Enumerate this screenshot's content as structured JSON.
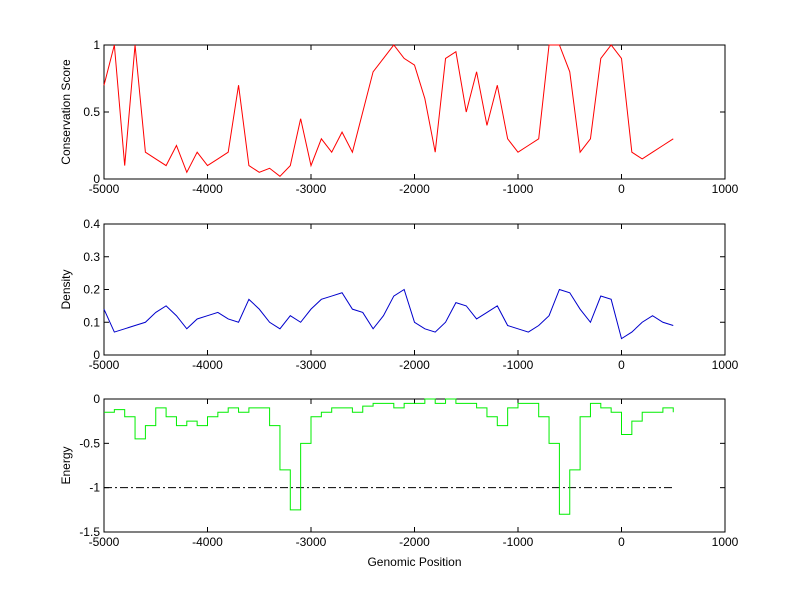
{
  "chart_data": [
    {
      "type": "line",
      "ylabel": "Conservation Score",
      "color": "#ff0000",
      "x": [
        -5000,
        -4900,
        -4800,
        -4700,
        -4600,
        -4500,
        -4400,
        -4300,
        -4200,
        -4100,
        -4000,
        -3900,
        -3800,
        -3700,
        -3600,
        -3500,
        -3400,
        -3300,
        -3200,
        -3100,
        -3000,
        -2900,
        -2800,
        -2700,
        -2600,
        -2500,
        -2400,
        -2300,
        -2200,
        -2100,
        -2000,
        -1900,
        -1800,
        -1700,
        -1600,
        -1500,
        -1400,
        -1300,
        -1200,
        -1100,
        -1000,
        -900,
        -800,
        -700,
        -600,
        -500,
        -400,
        -300,
        -200,
        -100,
        0,
        100,
        200,
        300,
        400,
        500
      ],
      "values": [
        0.7,
        1,
        0.1,
        1,
        0.2,
        0.15,
        0.1,
        0.25,
        0.05,
        0.2,
        0.1,
        0.15,
        0.2,
        0.7,
        0.1,
        0.05,
        0.08,
        0.02,
        0.1,
        0.45,
        0.1,
        0.3,
        0.2,
        0.35,
        0.2,
        0.5,
        0.8,
        0.9,
        1,
        0.9,
        0.85,
        0.6,
        0.2,
        0.9,
        0.95,
        0.5,
        0.8,
        0.4,
        0.7,
        0.3,
        0.2,
        0.25,
        0.3,
        1,
        1,
        0.8,
        0.2,
        0.3,
        0.9,
        1,
        0.9,
        0.2,
        0.15,
        0.2,
        0.25,
        0.3
      ],
      "xlim": [
        -5000,
        1000
      ],
      "xticks": [
        -5000,
        -4000,
        -3000,
        -2000,
        -1000,
        0,
        1000
      ],
      "ylim": [
        0,
        1
      ],
      "yticks": [
        0,
        0.5,
        1
      ]
    },
    {
      "type": "line",
      "ylabel": "Density",
      "color": "#0000cc",
      "x": [
        -5000,
        -4900,
        -4800,
        -4700,
        -4600,
        -4500,
        -4400,
        -4300,
        -4200,
        -4100,
        -4000,
        -3900,
        -3800,
        -3700,
        -3600,
        -3500,
        -3400,
        -3300,
        -3200,
        -3100,
        -3000,
        -2900,
        -2800,
        -2700,
        -2600,
        -2500,
        -2400,
        -2300,
        -2200,
        -2100,
        -2000,
        -1900,
        -1800,
        -1700,
        -1600,
        -1500,
        -1400,
        -1300,
        -1200,
        -1100,
        -1000,
        -900,
        -800,
        -700,
        -600,
        -500,
        -400,
        -300,
        -200,
        -100,
        0,
        100,
        200,
        300,
        400,
        500
      ],
      "values": [
        0.14,
        0.07,
        0.08,
        0.09,
        0.1,
        0.13,
        0.15,
        0.12,
        0.08,
        0.11,
        0.12,
        0.13,
        0.11,
        0.1,
        0.17,
        0.14,
        0.1,
        0.08,
        0.12,
        0.1,
        0.14,
        0.17,
        0.18,
        0.19,
        0.14,
        0.13,
        0.08,
        0.12,
        0.18,
        0.2,
        0.1,
        0.08,
        0.07,
        0.1,
        0.16,
        0.15,
        0.11,
        0.13,
        0.15,
        0.09,
        0.08,
        0.07,
        0.09,
        0.12,
        0.2,
        0.19,
        0.14,
        0.1,
        0.18,
        0.17,
        0.05,
        0.07,
        0.1,
        0.12,
        0.1,
        0.09
      ],
      "xlim": [
        -5000,
        1000
      ],
      "xticks": [
        -5000,
        -4000,
        -3000,
        -2000,
        -1000,
        0,
        1000
      ],
      "ylim": [
        0,
        0.4
      ],
      "yticks": [
        0,
        0.1,
        0.2,
        0.3,
        0.4
      ]
    },
    {
      "type": "step",
      "ylabel": "Energy",
      "xlabel": "Genomic Position",
      "color": "#00ee00",
      "reference_line": -1,
      "x": [
        -5000,
        -4900,
        -4800,
        -4700,
        -4600,
        -4500,
        -4400,
        -4300,
        -4200,
        -4100,
        -4000,
        -3900,
        -3800,
        -3700,
        -3600,
        -3500,
        -3400,
        -3300,
        -3200,
        -3100,
        -3000,
        -2900,
        -2800,
        -2700,
        -2600,
        -2500,
        -2400,
        -2300,
        -2200,
        -2100,
        -2000,
        -1900,
        -1800,
        -1700,
        -1600,
        -1500,
        -1400,
        -1300,
        -1200,
        -1100,
        -1000,
        -900,
        -800,
        -700,
        -600,
        -500,
        -400,
        -300,
        -200,
        -100,
        0,
        100,
        200,
        300,
        400,
        500
      ],
      "values": [
        -0.15,
        -0.12,
        -0.2,
        -0.45,
        -0.3,
        -0.1,
        -0.2,
        -0.3,
        -0.25,
        -0.3,
        -0.2,
        -0.15,
        -0.1,
        -0.15,
        -0.1,
        -0.1,
        -0.3,
        -0.8,
        -1.25,
        -0.5,
        -0.2,
        -0.15,
        -0.1,
        -0.1,
        -0.15,
        -0.08,
        -0.05,
        -0.05,
        -0.1,
        -0.05,
        -0.05,
        0,
        -0.05,
        0,
        -0.05,
        -0.05,
        -0.1,
        -0.2,
        -0.3,
        -0.1,
        -0.05,
        -0.05,
        -0.2,
        -0.5,
        -1.3,
        -0.8,
        -0.2,
        -0.05,
        -0.1,
        -0.15,
        -0.4,
        -0.25,
        -0.15,
        -0.15,
        -0.1,
        -0.15
      ],
      "xlim": [
        -5000,
        1000
      ],
      "xticks": [
        -5000,
        -4000,
        -3000,
        -2000,
        -1000,
        0,
        1000
      ],
      "ylim": [
        -1.5,
        0
      ],
      "yticks": [
        -1.5,
        -1,
        -0.5,
        0
      ]
    }
  ]
}
